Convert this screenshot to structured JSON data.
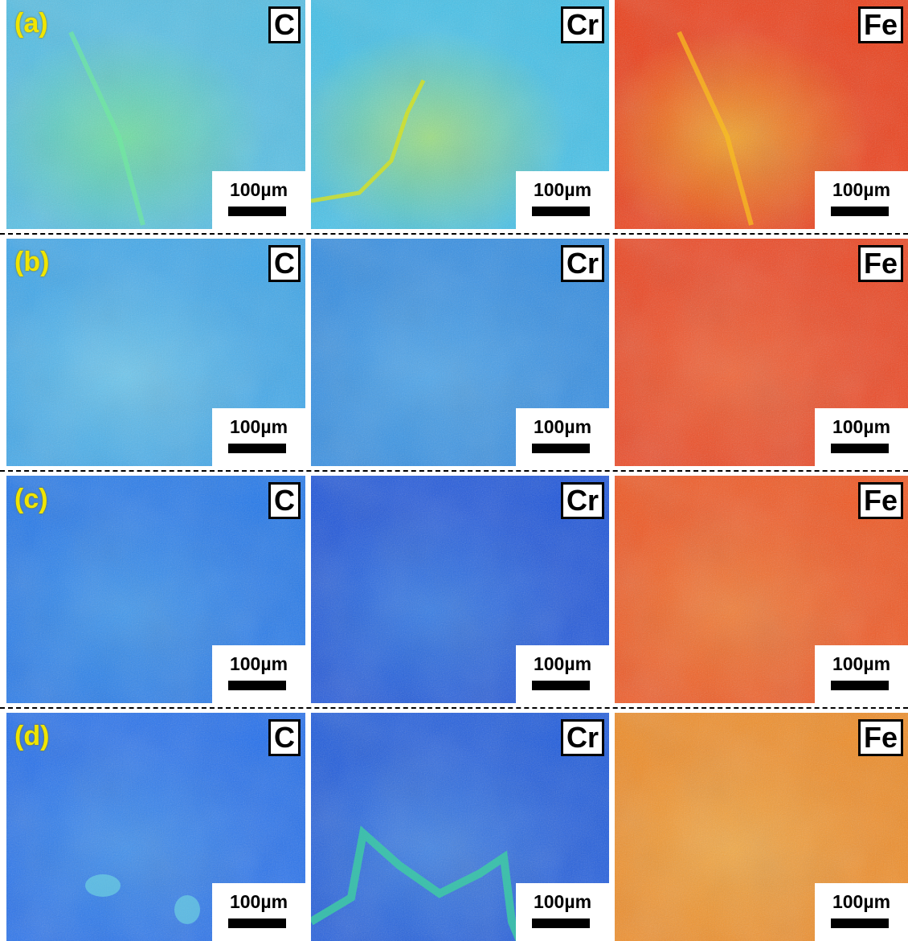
{
  "rows": [
    {
      "label": "(a)",
      "panels": [
        {
          "element": "C",
          "scale": "100µm"
        },
        {
          "element": "Cr",
          "scale": "100µm"
        },
        {
          "element": "Fe",
          "scale": "100µm"
        }
      ]
    },
    {
      "label": "(b)",
      "panels": [
        {
          "element": "C",
          "scale": "100µm"
        },
        {
          "element": "Cr",
          "scale": "100µm"
        },
        {
          "element": "Fe",
          "scale": "100µm"
        }
      ]
    },
    {
      "label": "(c)",
      "panels": [
        {
          "element": "C",
          "scale": "100µm"
        },
        {
          "element": "Cr",
          "scale": "100µm"
        },
        {
          "element": "Fe",
          "scale": "100µm"
        }
      ]
    },
    {
      "label": "(d)",
      "panels": [
        {
          "element": "C",
          "scale": "100µm"
        },
        {
          "element": "Cr",
          "scale": "100µm"
        },
        {
          "element": "Fe",
          "scale": "100µm"
        }
      ]
    }
  ]
}
